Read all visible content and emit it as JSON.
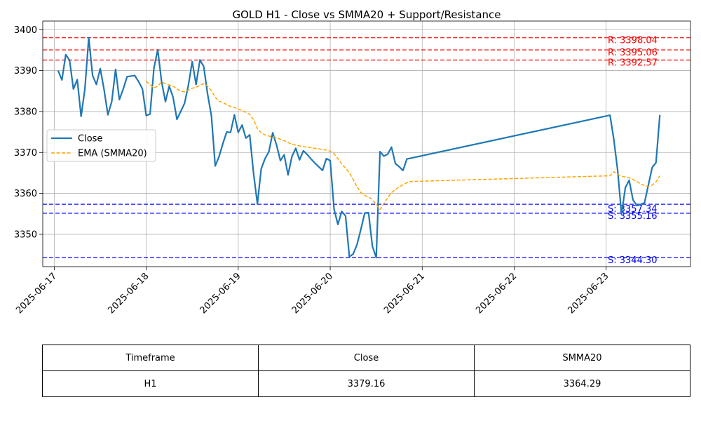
{
  "chart_data": {
    "type": "line",
    "title": "GOLD H1 - Close vs SMMA20 + Support/Resistance",
    "xlabel": "",
    "ylabel": "",
    "x_tick_labels": [
      "2025-06-17",
      "2025-06-18",
      "2025-06-19",
      "2025-06-20",
      "2025-06-21",
      "2025-06-22",
      "2025-06-23"
    ],
    "y_ticks": [
      3350,
      3360,
      3370,
      3380,
      3390,
      3400
    ],
    "xlim": [
      "2025-06-16 21:00",
      "2025-06-23 22:00"
    ],
    "ylim": [
      3342.1,
      3402.1
    ],
    "grid": true,
    "legend_position": "center-left",
    "series": [
      {
        "name": "Close",
        "color": "#1f77b4",
        "style": "solid",
        "points": [
          [
            "2025-06-17 01:00",
            3390.0
          ],
          [
            "2025-06-17 02:00",
            3387.7
          ],
          [
            "2025-06-17 03:00",
            3393.9
          ],
          [
            "2025-06-17 04:00",
            3392.5
          ],
          [
            "2025-06-17 05:00",
            3385.5
          ],
          [
            "2025-06-17 06:00",
            3387.8
          ],
          [
            "2025-06-17 07:00",
            3378.8
          ],
          [
            "2025-06-17 08:00",
            3385.5
          ],
          [
            "2025-06-17 09:00",
            3398.0
          ],
          [
            "2025-06-17 10:00",
            3388.8
          ],
          [
            "2025-06-17 11:00",
            3386.6
          ],
          [
            "2025-06-17 12:00",
            3390.5
          ],
          [
            "2025-06-17 13:00",
            3385.3
          ],
          [
            "2025-06-17 14:00",
            3379.2
          ],
          [
            "2025-06-17 15:00",
            3382.4
          ],
          [
            "2025-06-17 16:00",
            3390.3
          ],
          [
            "2025-06-17 17:00",
            3382.9
          ],
          [
            "2025-06-17 18:00",
            3385.5
          ],
          [
            "2025-06-17 19:00",
            3388.5
          ],
          [
            "2025-06-17 21:00",
            3388.8
          ],
          [
            "2025-06-17 22:00",
            3387.3
          ],
          [
            "2025-06-17 23:00",
            3385.5
          ],
          [
            "2025-06-18 00:00",
            3379.0
          ],
          [
            "2025-06-18 01:00",
            3379.4
          ],
          [
            "2025-06-18 02:00",
            3390.6
          ],
          [
            "2025-06-18 03:00",
            3395.1
          ],
          [
            "2025-06-18 04:00",
            3387.3
          ],
          [
            "2025-06-18 05:00",
            3382.4
          ],
          [
            "2025-06-18 06:00",
            3386.2
          ],
          [
            "2025-06-18 07:00",
            3383.5
          ],
          [
            "2025-06-18 08:00",
            3378.1
          ],
          [
            "2025-06-18 09:00",
            3380.0
          ],
          [
            "2025-06-18 10:00",
            3382.0
          ],
          [
            "2025-06-18 11:00",
            3386.5
          ],
          [
            "2025-06-18 12:00",
            3392.2
          ],
          [
            "2025-06-18 13:00",
            3386.6
          ],
          [
            "2025-06-18 14:00",
            3392.6
          ],
          [
            "2025-06-18 15:00",
            3391.0
          ],
          [
            "2025-06-18 16:00",
            3384.3
          ],
          [
            "2025-06-18 17:00",
            3378.9
          ],
          [
            "2025-06-18 18:00",
            3366.7
          ],
          [
            "2025-06-18 19:00",
            3369.0
          ],
          [
            "2025-06-18 20:00",
            3372.2
          ],
          [
            "2025-06-18 21:00",
            3375.0
          ],
          [
            "2025-06-18 22:00",
            3374.9
          ],
          [
            "2025-06-18 23:00",
            3379.2
          ],
          [
            "2025-06-19 00:00",
            3374.9
          ],
          [
            "2025-06-19 01:00",
            3376.7
          ],
          [
            "2025-06-19 02:00",
            3373.5
          ],
          [
            "2025-06-19 03:00",
            3374.3
          ],
          [
            "2025-06-19 04:00",
            3364.9
          ],
          [
            "2025-06-19 05:00",
            3357.4
          ],
          [
            "2025-06-19 06:00",
            3366.0
          ],
          [
            "2025-06-19 07:00",
            3368.5
          ],
          [
            "2025-06-19 08:00",
            3370.2
          ],
          [
            "2025-06-19 09:00",
            3374.8
          ],
          [
            "2025-06-19 10:00",
            3371.8
          ],
          [
            "2025-06-19 11:00",
            3368.0
          ],
          [
            "2025-06-19 12:00",
            3369.4
          ],
          [
            "2025-06-19 13:00",
            3364.5
          ],
          [
            "2025-06-19 14:00",
            3369.0
          ],
          [
            "2025-06-19 15:00",
            3371.0
          ],
          [
            "2025-06-19 16:00",
            3368.2
          ],
          [
            "2025-06-19 17:00",
            3370.4
          ],
          [
            "2025-06-19 18:00",
            3369.5
          ],
          [
            "2025-06-19 19:00",
            3368.4
          ],
          [
            "2025-06-19 20:00",
            3367.4
          ],
          [
            "2025-06-19 21:00",
            3366.5
          ],
          [
            "2025-06-19 22:00",
            3365.6
          ],
          [
            "2025-06-19 23:00",
            3368.5
          ],
          [
            "2025-06-20 00:00",
            3368.0
          ],
          [
            "2025-06-20 01:00",
            3356.2
          ],
          [
            "2025-06-20 02:00",
            3352.4
          ],
          [
            "2025-06-20 03:00",
            3355.6
          ],
          [
            "2025-06-20 04:00",
            3354.5
          ],
          [
            "2025-06-20 05:00",
            3344.5
          ],
          [
            "2025-06-20 06:00",
            3345.2
          ],
          [
            "2025-06-20 07:00",
            3347.5
          ],
          [
            "2025-06-20 08:00",
            3351.2
          ],
          [
            "2025-06-20 09:00",
            3355.2
          ],
          [
            "2025-06-20 10:00",
            3355.3
          ],
          [
            "2025-06-20 11:00",
            3347.1
          ],
          [
            "2025-06-20 12:00",
            3344.3
          ],
          [
            "2025-06-20 13:00",
            3370.2
          ],
          [
            "2025-06-20 14:00",
            3369.1
          ],
          [
            "2025-06-20 15:00",
            3369.6
          ],
          [
            "2025-06-20 16:00",
            3371.3
          ],
          [
            "2025-06-20 17:00",
            3367.3
          ],
          [
            "2025-06-20 18:00",
            3366.5
          ],
          [
            "2025-06-20 19:00",
            3365.6
          ],
          [
            "2025-06-20 20:00",
            3368.4
          ],
          [
            "2025-06-20 21:00",
            3368.6
          ],
          [
            "2025-06-23 01:00",
            3379.1
          ],
          [
            "2025-06-23 02:00",
            3373.1
          ],
          [
            "2025-06-23 03:00",
            3365.6
          ],
          [
            "2025-06-23 04:00",
            3354.9
          ],
          [
            "2025-06-23 05:00",
            3361.4
          ],
          [
            "2025-06-23 06:00",
            3363.2
          ],
          [
            "2025-06-23 07:00",
            3358.4
          ],
          [
            "2025-06-23 08:00",
            3357.0
          ],
          [
            "2025-06-23 09:00",
            3357.3
          ],
          [
            "2025-06-23 10:00",
            3357.7
          ],
          [
            "2025-06-23 11:00",
            3362.0
          ],
          [
            "2025-06-23 12:00",
            3366.3
          ],
          [
            "2025-06-23 13:00",
            3367.5
          ],
          [
            "2025-06-23 14:00",
            3379.16
          ]
        ]
      },
      {
        "name": "EMA (SMMA20)",
        "color": "#ffa500",
        "style": "dashed",
        "points": [
          [
            "2025-06-18 00:00",
            3387.4
          ],
          [
            "2025-06-18 01:00",
            3386.5
          ],
          [
            "2025-06-18 02:00",
            3385.8
          ],
          [
            "2025-06-18 03:00",
            3386.2
          ],
          [
            "2025-06-18 04:00",
            3387.2
          ],
          [
            "2025-06-18 05:00",
            3386.8
          ],
          [
            "2025-06-18 06:00",
            3386.5
          ],
          [
            "2025-06-18 07:00",
            3386.2
          ],
          [
            "2025-06-18 08:00",
            3385.5
          ],
          [
            "2025-06-18 09:00",
            3385.0
          ],
          [
            "2025-06-18 10:00",
            3384.8
          ],
          [
            "2025-06-18 11:00",
            3385.2
          ],
          [
            "2025-06-18 12:00",
            3385.7
          ],
          [
            "2025-06-18 13:00",
            3385.9
          ],
          [
            "2025-06-18 14:00",
            3386.4
          ],
          [
            "2025-06-18 15:00",
            3386.8
          ],
          [
            "2025-06-18 16:00",
            3386.2
          ],
          [
            "2025-06-18 17:00",
            3385.1
          ],
          [
            "2025-06-18 18:00",
            3383.5
          ],
          [
            "2025-06-18 19:00",
            3382.5
          ],
          [
            "2025-06-18 20:00",
            3382.2
          ],
          [
            "2025-06-18 21:00",
            3381.7
          ],
          [
            "2025-06-18 22:00",
            3381.2
          ],
          [
            "2025-06-18 23:00",
            3381.0
          ],
          [
            "2025-06-19 00:00",
            3380.6
          ],
          [
            "2025-06-19 01:00",
            3380.3
          ],
          [
            "2025-06-19 02:00",
            3379.8
          ],
          [
            "2025-06-19 03:00",
            3379.3
          ],
          [
            "2025-06-19 04:00",
            3378.0
          ],
          [
            "2025-06-19 05:00",
            3375.8
          ],
          [
            "2025-06-19 06:00",
            3374.8
          ],
          [
            "2025-06-19 07:00",
            3374.3
          ],
          [
            "2025-06-19 08:00",
            3374.0
          ],
          [
            "2025-06-19 09:00",
            3373.8
          ],
          [
            "2025-06-19 10:00",
            3373.7
          ],
          [
            "2025-06-19 11:00",
            3373.2
          ],
          [
            "2025-06-19 12:00",
            3372.9
          ],
          [
            "2025-06-19 13:00",
            3372.4
          ],
          [
            "2025-06-19 14:00",
            3372.0
          ],
          [
            "2025-06-19 15:00",
            3371.8
          ],
          [
            "2025-06-19 16:00",
            3371.6
          ],
          [
            "2025-06-19 17:00",
            3371.4
          ],
          [
            "2025-06-19 18:00",
            3371.3
          ],
          [
            "2025-06-19 19:00",
            3371.2
          ],
          [
            "2025-06-19 20:00",
            3371.0
          ],
          [
            "2025-06-19 21:00",
            3370.9
          ],
          [
            "2025-06-19 22:00",
            3370.7
          ],
          [
            "2025-06-19 23:00",
            3370.6
          ],
          [
            "2025-06-20 00:00",
            3370.3
          ],
          [
            "2025-06-20 01:00",
            3369.7
          ],
          [
            "2025-06-20 02:00",
            3368.5
          ],
          [
            "2025-06-20 03:00",
            3367.2
          ],
          [
            "2025-06-20 04:00",
            3366.2
          ],
          [
            "2025-06-20 05:00",
            3365.0
          ],
          [
            "2025-06-20 06:00",
            3363.4
          ],
          [
            "2025-06-20 07:00",
            3361.6
          ],
          [
            "2025-06-20 08:00",
            3360.2
          ],
          [
            "2025-06-20 09:00",
            3359.5
          ],
          [
            "2025-06-20 10:00",
            3359.1
          ],
          [
            "2025-06-20 11:00",
            3358.5
          ],
          [
            "2025-06-20 12:00",
            3357.3
          ],
          [
            "2025-06-20 13:00",
            3356.1
          ],
          [
            "2025-06-20 14:00",
            3357.5
          ],
          [
            "2025-06-20 15:00",
            3358.9
          ],
          [
            "2025-06-20 16:00",
            3360.2
          ],
          [
            "2025-06-20 17:00",
            3360.9
          ],
          [
            "2025-06-20 18:00",
            3361.6
          ],
          [
            "2025-06-20 19:00",
            3362.1
          ],
          [
            "2025-06-20 20:00",
            3362.6
          ],
          [
            "2025-06-20 21:00",
            3362.9
          ],
          [
            "2025-06-23 01:00",
            3364.3
          ],
          [
            "2025-06-23 02:00",
            3365.3
          ],
          [
            "2025-06-23 03:00",
            3364.7
          ],
          [
            "2025-06-23 04:00",
            3364.2
          ],
          [
            "2025-06-23 05:00",
            3364.0
          ],
          [
            "2025-06-23 06:00",
            3363.8
          ],
          [
            "2025-06-23 07:00",
            3363.4
          ],
          [
            "2025-06-23 08:00",
            3362.9
          ],
          [
            "2025-06-23 09:00",
            3362.3
          ],
          [
            "2025-06-23 10:00",
            3361.9
          ],
          [
            "2025-06-23 11:00",
            3361.7
          ],
          [
            "2025-06-23 12:00",
            3362.0
          ],
          [
            "2025-06-23 13:00",
            3362.8
          ],
          [
            "2025-06-23 14:00",
            3364.29
          ]
        ]
      }
    ],
    "resistance": [
      {
        "value": 3398.04,
        "label": "R: 3398.04"
      },
      {
        "value": 3395.06,
        "label": "R: 3395.06"
      },
      {
        "value": 3392.57,
        "label": "R: 3392.57"
      }
    ],
    "support": [
      {
        "value": 3357.34,
        "label": "S: 3357.34"
      },
      {
        "value": 3355.16,
        "label": "S: 3355.16"
      },
      {
        "value": 3344.3,
        "label": "S: 3344.30"
      }
    ],
    "resistance_color": "#ff0000",
    "support_color": "#0000ff"
  },
  "table": {
    "headers": [
      "Timeframe",
      "Close",
      "SMMA20"
    ],
    "rows": [
      [
        "H1",
        "3379.16",
        "3364.29"
      ]
    ]
  }
}
